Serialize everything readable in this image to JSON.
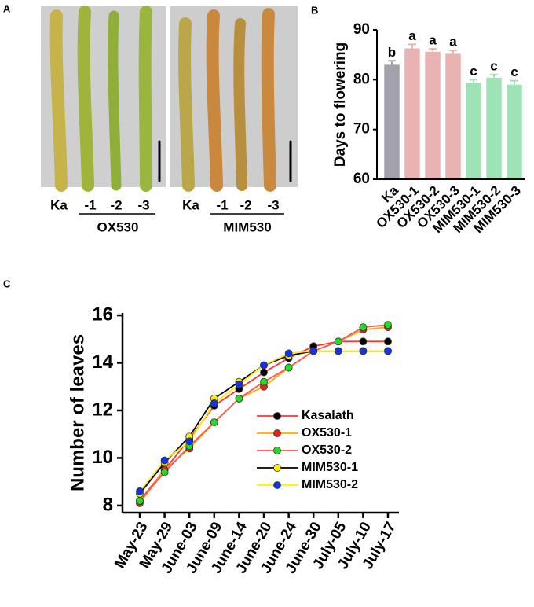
{
  "photo_panel": {
    "label": "A",
    "left_labels": [
      "Ka",
      "-1",
      "-2",
      "-3"
    ],
    "left_group": "OX530",
    "right_labels": [
      "Ka",
      "-1",
      "-2",
      "-3"
    ],
    "right_group": "MIM530"
  },
  "chart_data": [
    {
      "type": "bar",
      "panel_label": "B",
      "y_label": "Days to flowering",
      "categories": [
        "Ka",
        "OX530-1",
        "OX530-2",
        "OX530-3",
        "MIM530-1",
        "MIM530-2",
        "MIM530-3"
      ],
      "values": [
        83,
        86.3,
        85.6,
        85.2,
        79.4,
        80.4,
        79
      ],
      "errors": [
        0.8,
        0.8,
        0.6,
        0.7,
        0.6,
        0.6,
        0.8
      ],
      "annotations": [
        "b",
        "a",
        "a",
        "a",
        "c",
        "c",
        "c"
      ],
      "colors": [
        "#a3a2ac",
        "#e9b3b3",
        "#e9b3b3",
        "#e9b3b3",
        "#9ee3b5",
        "#9ee3b5",
        "#9ee3b5"
      ],
      "ylim": [
        60,
        90
      ],
      "yticks": [
        60,
        70,
        80,
        90
      ]
    },
    {
      "type": "line",
      "panel_label": "C",
      "y_label": "Number of leaves",
      "categories": [
        "May-23",
        "May-29",
        "June-03",
        "June-09",
        "June-14",
        "June-20",
        "June-24",
        "June-30",
        "July-05",
        "July-10",
        "July-17"
      ],
      "ylim": [
        7.7,
        16.1
      ],
      "yticks": [
        8,
        10,
        12,
        14,
        16
      ],
      "series": [
        {
          "name": "Kasalath",
          "color": "#000000",
          "line_color": "#ff3333",
          "values": [
            8.2,
            9.5,
            10.8,
            12.2,
            12.9,
            13.6,
            14.2,
            14.7,
            14.9,
            14.9,
            14.9
          ]
        },
        {
          "name": "OX530-1",
          "color": "#e8221a",
          "line_color": "#ffaa00",
          "values": [
            8.1,
            9.5,
            10.4,
            11.5,
            12.5,
            13.0,
            13.8,
            14.5,
            14.9,
            15.4,
            15.5
          ]
        },
        {
          "name": "OX530-2",
          "color": "#22dd22",
          "line_color": "#ff5555",
          "values": [
            8.2,
            9.4,
            10.5,
            11.5,
            12.5,
            13.2,
            13.8,
            14.5,
            14.9,
            15.5,
            15.6
          ]
        },
        {
          "name": "MIM530-1",
          "color": "#ffee00",
          "line_color": "#000000",
          "values": [
            8.5,
            9.8,
            10.9,
            12.5,
            13.2,
            13.9,
            14.3,
            14.5,
            14.5,
            14.5,
            14.5
          ]
        },
        {
          "name": "MIM530-2",
          "color": "#1133ee",
          "line_color": "#ffee00",
          "values": [
            8.6,
            9.9,
            10.7,
            12.3,
            13.1,
            13.9,
            14.4,
            14.5,
            14.5,
            14.5,
            14.5
          ]
        }
      ]
    }
  ]
}
